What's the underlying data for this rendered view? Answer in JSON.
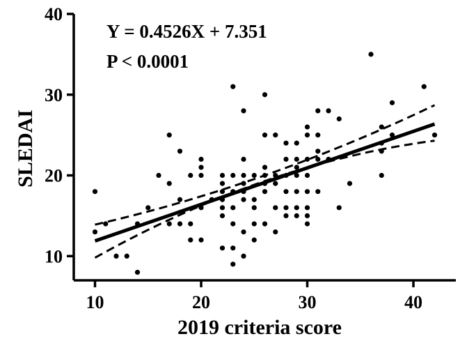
{
  "chart_data": {
    "type": "scatter",
    "title": "",
    "xlabel": "2019 criteria score",
    "ylabel": "SLEDAI",
    "xlim": [
      8,
      44
    ],
    "ylim": [
      7,
      40
    ],
    "xticks": [
      10,
      20,
      30,
      40
    ],
    "yticks": [
      10,
      20,
      30,
      40
    ],
    "grid": false,
    "annotations": {
      "equation": "Y = 0.4526X + 7.351",
      "p_value": "P < 0.0001"
    },
    "regression": {
      "slope": 0.4526,
      "intercept": 7.351,
      "x_range": [
        10,
        42
      ],
      "ci_lower": [
        [
          10,
          9.8
        ],
        [
          26,
          19.3
        ],
        [
          42,
          24.3
        ]
      ],
      "ci_upper": [
        [
          10,
          13.9
        ],
        [
          26,
          20.0
        ],
        [
          42,
          28.7
        ]
      ]
    },
    "colors": {
      "points": "#000000",
      "line": "#000000",
      "axes": "#000000"
    },
    "points": [
      [
        10,
        18
      ],
      [
        10,
        13
      ],
      [
        11,
        14
      ],
      [
        12,
        10
      ],
      [
        13,
        10
      ],
      [
        14,
        8
      ],
      [
        14,
        14
      ],
      [
        15,
        16
      ],
      [
        16,
        20
      ],
      [
        17,
        25
      ],
      [
        17,
        19
      ],
      [
        17,
        14
      ],
      [
        18,
        23
      ],
      [
        18,
        17
      ],
      [
        18,
        14
      ],
      [
        19,
        20
      ],
      [
        19,
        14
      ],
      [
        19,
        12
      ],
      [
        20,
        22
      ],
      [
        20,
        21
      ],
      [
        20,
        20
      ],
      [
        20,
        16
      ],
      [
        20,
        12
      ],
      [
        21,
        17
      ],
      [
        22,
        20
      ],
      [
        22,
        19
      ],
      [
        22,
        18
      ],
      [
        22,
        17
      ],
      [
        22,
        16
      ],
      [
        22,
        15
      ],
      [
        22,
        11
      ],
      [
        23,
        31
      ],
      [
        23,
        20
      ],
      [
        23,
        18
      ],
      [
        23,
        16
      ],
      [
        23,
        14
      ],
      [
        23,
        11
      ],
      [
        23,
        9
      ],
      [
        24,
        28
      ],
      [
        24,
        22
      ],
      [
        24,
        20
      ],
      [
        24,
        19
      ],
      [
        24,
        18
      ],
      [
        24,
        17
      ],
      [
        24,
        13
      ],
      [
        24,
        10
      ],
      [
        25,
        20
      ],
      [
        25,
        17
      ],
      [
        25,
        16
      ],
      [
        25,
        14
      ],
      [
        25,
        12
      ],
      [
        26,
        30
      ],
      [
        26,
        25
      ],
      [
        26,
        21
      ],
      [
        26,
        20
      ],
      [
        26,
        19
      ],
      [
        26,
        18
      ],
      [
        26,
        14
      ],
      [
        27,
        25
      ],
      [
        27,
        20
      ],
      [
        27,
        19
      ],
      [
        27,
        16
      ],
      [
        27,
        13
      ],
      [
        28,
        24
      ],
      [
        28,
        22
      ],
      [
        28,
        20
      ],
      [
        28,
        18
      ],
      [
        28,
        16
      ],
      [
        28,
        15
      ],
      [
        29,
        24
      ],
      [
        29,
        22
      ],
      [
        29,
        21
      ],
      [
        29,
        20
      ],
      [
        29,
        18
      ],
      [
        29,
        16
      ],
      [
        29,
        15
      ],
      [
        30,
        26
      ],
      [
        30,
        25
      ],
      [
        30,
        22
      ],
      [
        30,
        20
      ],
      [
        30,
        18
      ],
      [
        30,
        16
      ],
      [
        30,
        15
      ],
      [
        30,
        14
      ],
      [
        31,
        28
      ],
      [
        31,
        25
      ],
      [
        31,
        23
      ],
      [
        31,
        22
      ],
      [
        31,
        18
      ],
      [
        32,
        28
      ],
      [
        32,
        22
      ],
      [
        33,
        27
      ],
      [
        33,
        16
      ],
      [
        34,
        19
      ],
      [
        36,
        35
      ],
      [
        37,
        26
      ],
      [
        37,
        24
      ],
      [
        37,
        23
      ],
      [
        37,
        20
      ],
      [
        38,
        29
      ],
      [
        38,
        25
      ],
      [
        41,
        31
      ],
      [
        42,
        25
      ]
    ]
  }
}
